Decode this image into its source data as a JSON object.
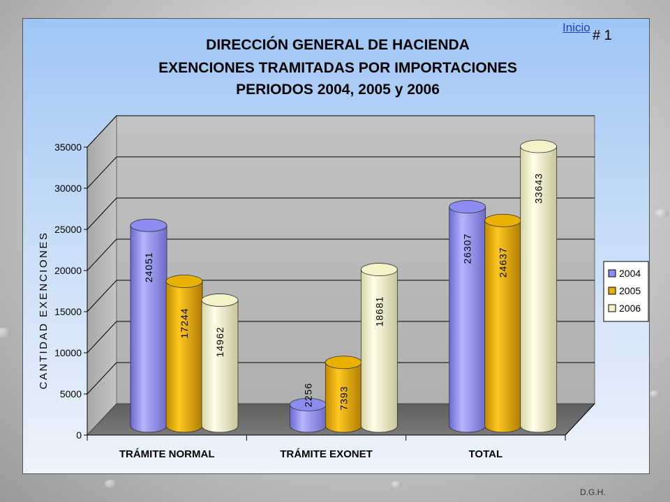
{
  "slide": {
    "link_label": "Inicio",
    "slide_number": "# 1",
    "footer": "D.G.H."
  },
  "colors": {
    "s2004": "#8c8cf0",
    "s2005": "#e8b000",
    "s2006": "#f4f2c8"
  },
  "chart_data": {
    "type": "bar",
    "title": [
      "DIRECCIÓN GENERAL DE HACIENDA",
      "EXENCIONES TRAMITADAS POR IMPORTACIONES",
      "PERIODOS 2004, 2005 y 2006"
    ],
    "ylabel": "CANTIDAD EXENCIONES",
    "xlabel": "",
    "ylim": [
      0,
      35000
    ],
    "yticks": [
      0,
      5000,
      10000,
      15000,
      20000,
      25000,
      30000,
      35000
    ],
    "categories": [
      "TRÁMITE NORMAL",
      "TRÁMITE EXONET",
      "TOTAL"
    ],
    "series": [
      {
        "name": "2004",
        "values": [
          24051,
          2256,
          26307
        ]
      },
      {
        "name": "2005",
        "values": [
          17244,
          7393,
          24637
        ]
      },
      {
        "name": "2006",
        "values": [
          14962,
          18681,
          33643
        ]
      }
    ],
    "legend": "right",
    "grid": true,
    "style": "3d-cylinder"
  }
}
